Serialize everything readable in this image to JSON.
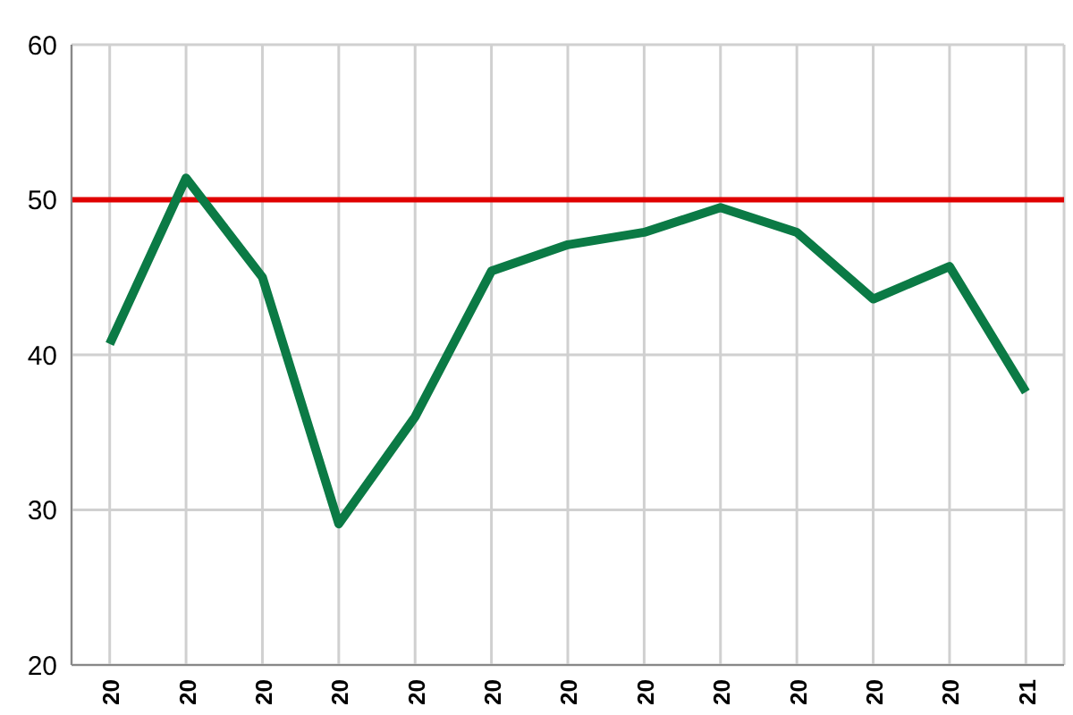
{
  "chart_data": {
    "type": "line",
    "categories": [
      "20",
      "20",
      "20",
      "20",
      "20",
      "20",
      "20",
      "20",
      "20",
      "20",
      "20",
      "20",
      "21"
    ],
    "series": [
      {
        "color": "#0b7a45",
        "values": [
          40.7,
          51.4,
          45.0,
          29.1,
          36.0,
          45.4,
          47.1,
          47.9,
          49.5,
          47.9,
          43.6,
          45.7,
          37.6
        ]
      }
    ],
    "ylim": [
      20,
      60
    ],
    "yticks": [
      20,
      30,
      40,
      50,
      60
    ],
    "grid": true,
    "marker": "none",
    "line_style": "solid",
    "ref_lines": [
      {
        "axis": "y",
        "value": 50,
        "color": "#e00000"
      }
    ]
  }
}
